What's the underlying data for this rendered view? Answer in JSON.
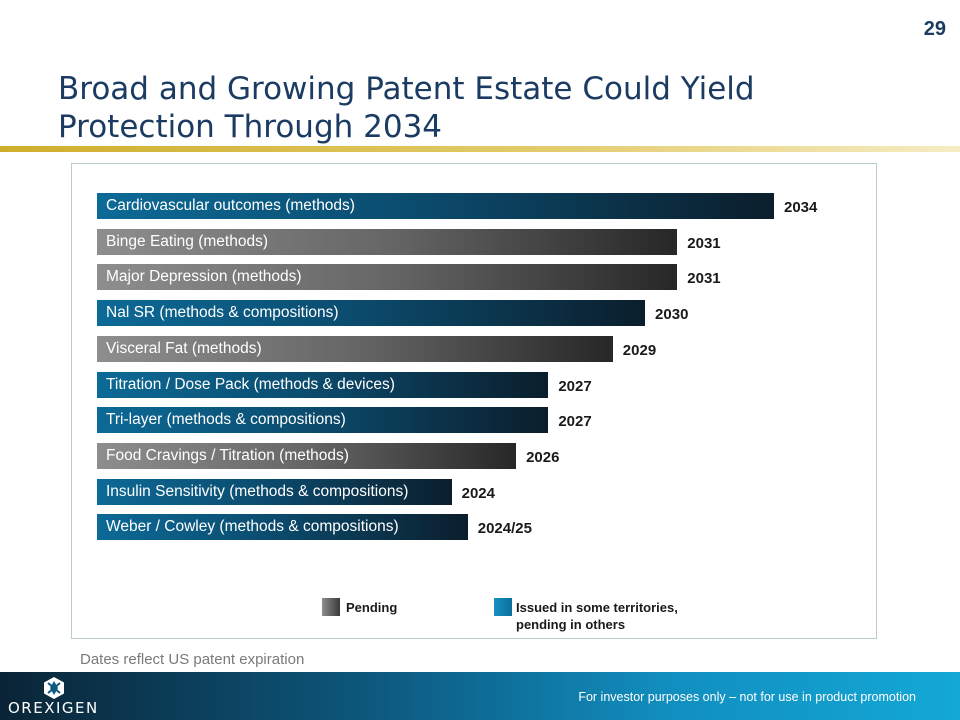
{
  "page_number": "29",
  "title": "Broad and Growing Patent Estate Could Yield Protection Through 2034",
  "chart_data": {
    "type": "bar",
    "orientation": "horizontal",
    "title": "",
    "categories": [
      "Cardiovascular outcomes (methods)",
      "Binge Eating (methods)",
      "Major Depression (methods)",
      "Nal SR (methods & compositions)",
      "Visceral Fat (methods)",
      "Titration / Dose Pack (methods & devices)",
      "Tri-layer (methods & compositions)",
      "Food Cravings / Titration (methods)",
      "Insulin Sensitivity (methods & compositions)",
      "Weber / Cowley (methods & compositions)"
    ],
    "values": [
      2034,
      2031,
      2031,
      2030,
      2029,
      2027,
      2027,
      2026,
      2024,
      2024.5
    ],
    "value_labels": [
      "2034",
      "2031",
      "2031",
      "2030",
      "2029",
      "2027",
      "2027",
      "2026",
      "2024",
      "2024/25"
    ],
    "status": [
      "issued",
      "pending",
      "pending",
      "issued",
      "pending",
      "issued",
      "issued",
      "pending",
      "issued",
      "issued"
    ],
    "xlim": [
      2013,
      2034
    ],
    "xlabel": "",
    "ylabel": "",
    "legend": [
      {
        "key": "pending",
        "label": "Pending",
        "color": "#666666"
      },
      {
        "key": "issued",
        "label": "Issued in some territories, pending in others",
        "color": "#118fc0"
      }
    ],
    "legend_position": "bottom-center"
  },
  "footnote": "Dates reflect US patent expiration",
  "footer": {
    "logo_text": "OREXIGEN",
    "disclaimer": "For investor purposes only – not for use in product promotion"
  }
}
